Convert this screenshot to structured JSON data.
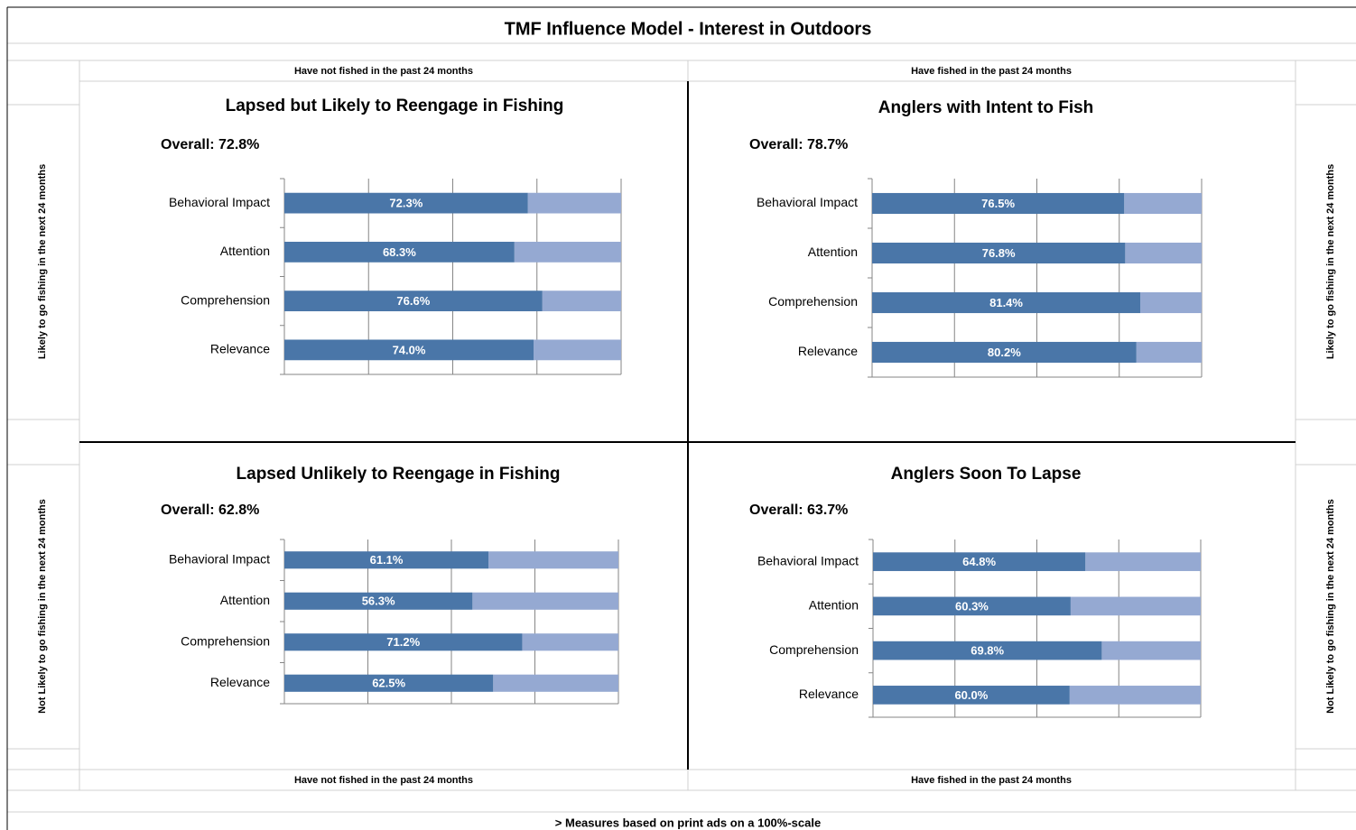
{
  "title": "TMF Influence Model - Interest in Outdoors",
  "top_labels": [
    "Have not fished in the past 24 months",
    "Have fished in the past 24 months"
  ],
  "bottom_labels": [
    "Have not fished in the past 24 months",
    "Have fished in the past 24 months"
  ],
  "left_labels": [
    "Likely to go fishing in the next 24 months",
    "Not Likely to go fishing in the next 24 months"
  ],
  "right_labels": [
    "Likely to go fishing in the next 24 months",
    "Not Likely to go fishing in the next 24 months"
  ],
  "footnote": "> Measures based on print ads on a 100%-scale",
  "chart_data": [
    {
      "type": "bar",
      "orientation": "horizontal",
      "title": "Lapsed but Likely to Reengage in Fishing",
      "subtitle": "Overall: 72.8%",
      "categories": [
        "Behavioral Impact",
        "Attention",
        "Comprehension",
        "Relevance"
      ],
      "values": [
        72.3,
        68.3,
        76.6,
        74.0
      ],
      "value_labels": [
        "72.3%",
        "68.3%",
        "76.6%",
        "74.0%"
      ],
      "color": "#4a76a8",
      "remainder_color": "#95a9d2",
      "xlim": [
        0,
        100
      ],
      "xticks": [
        0,
        25,
        50,
        75,
        100
      ],
      "grid": true
    },
    {
      "type": "bar",
      "orientation": "horizontal",
      "title": "Anglers with Intent to Fish",
      "subtitle": "Overall: 78.7%",
      "categories": [
        "Behavioral Impact",
        "Attention",
        "Comprehension",
        "Relevance"
      ],
      "values": [
        76.5,
        76.8,
        81.4,
        80.2
      ],
      "value_labels": [
        "76.5%",
        "76.8%",
        "81.4%",
        "80.2%"
      ],
      "color": "#4a76a8",
      "remainder_color": "#95a9d2",
      "xlim": [
        0,
        100
      ],
      "xticks": [
        0,
        25,
        50,
        75,
        100
      ],
      "grid": true
    },
    {
      "type": "bar",
      "orientation": "horizontal",
      "title": "Lapsed Unlikely to Reengage in Fishing",
      "subtitle": "Overall: 62.8%",
      "categories": [
        "Behavioral Impact",
        "Attention",
        "Comprehension",
        "Relevance"
      ],
      "values": [
        61.1,
        56.3,
        71.2,
        62.5
      ],
      "value_labels": [
        "61.1%",
        "56.3%",
        "71.2%",
        "62.5%"
      ],
      "color": "#4a76a8",
      "remainder_color": "#95a9d2",
      "xlim": [
        0,
        100
      ],
      "xticks": [
        0,
        25,
        50,
        75,
        100
      ],
      "grid": true
    },
    {
      "type": "bar",
      "orientation": "horizontal",
      "title": "Anglers Soon To Lapse",
      "subtitle": "Overall: 63.7%",
      "categories": [
        "Behavioral Impact",
        "Attention",
        "Comprehension",
        "Relevance"
      ],
      "values": [
        64.8,
        60.3,
        69.8,
        60.0
      ],
      "value_labels": [
        "64.8%",
        "60.3%",
        "69.8%",
        "60.0%"
      ],
      "color": "#4a76a8",
      "remainder_color": "#95a9d2",
      "xlim": [
        0,
        100
      ],
      "xticks": [
        0,
        25,
        50,
        75,
        100
      ],
      "grid": true
    }
  ]
}
